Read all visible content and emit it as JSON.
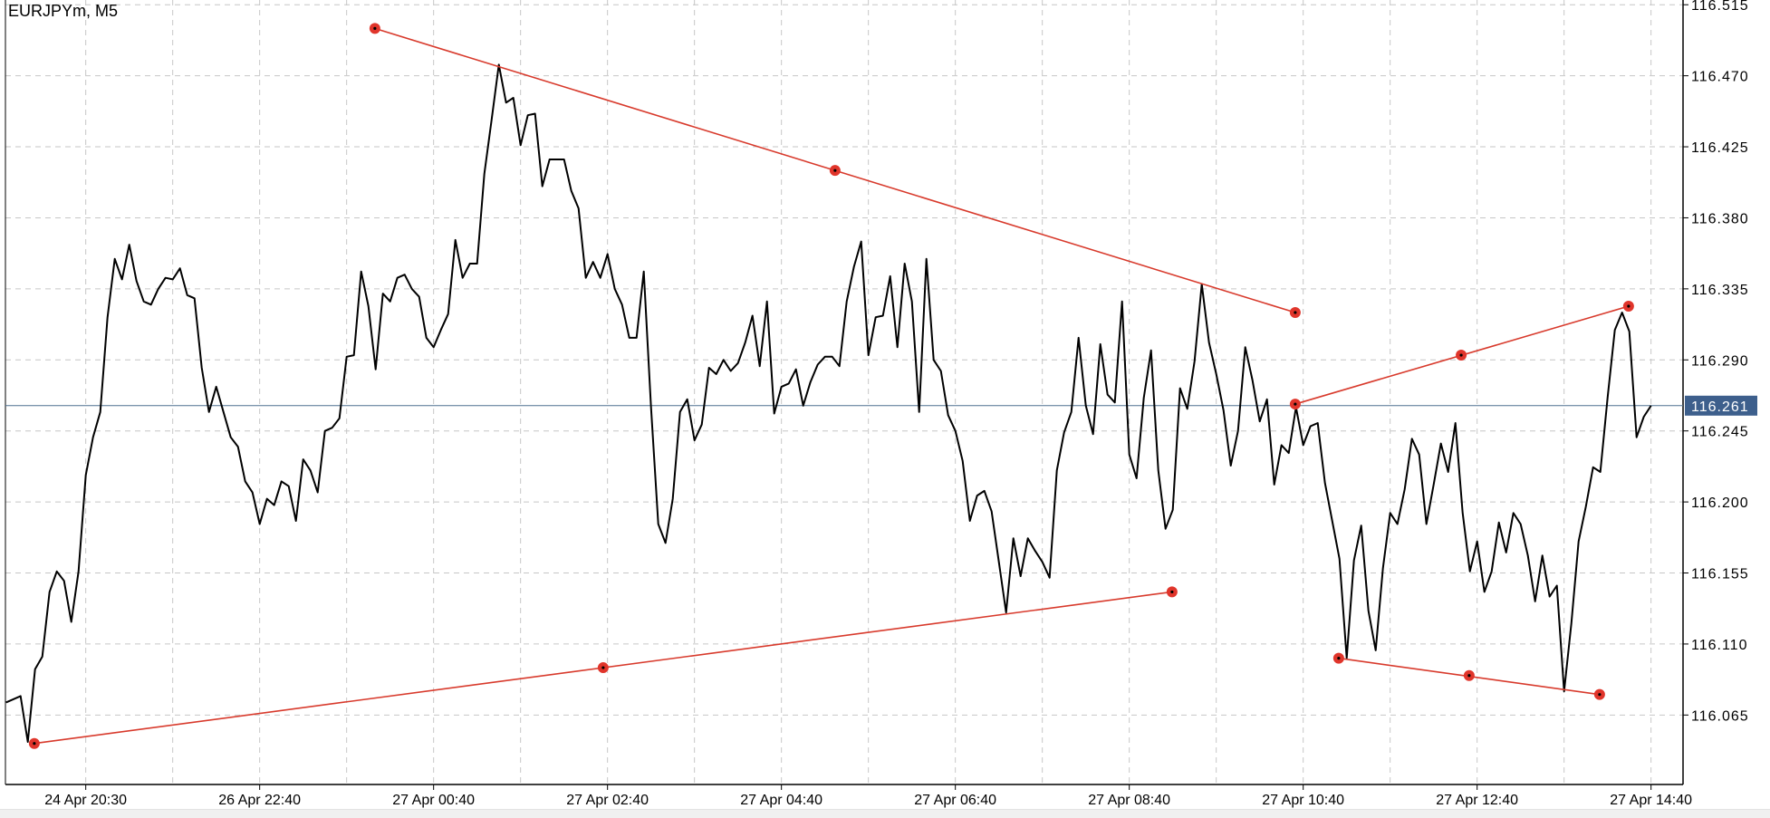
{
  "chart_title": "EURJPYm, M5",
  "colors": {
    "price_line": "#000000",
    "trendline": "#d83a2c",
    "anchor": "#e0352b",
    "grid": "#c6c6c6",
    "current_price_line": "#4f7090",
    "current_price_badge": "#3d5f8c"
  },
  "chart_data": {
    "type": "line",
    "symbol": "EURJPYm",
    "timeframe": "M5",
    "grid": true,
    "ylim": [
      116.021,
      116.518
    ],
    "y_ticks": [
      "116.515",
      "116.470",
      "116.425",
      "116.380",
      "116.335",
      "116.290",
      "116.245",
      "116.200",
      "116.155",
      "116.110",
      "116.065"
    ],
    "x_ticks": [
      {
        "label": "24 Apr 20:30",
        "bar": 11
      },
      {
        "label": "26 Apr 22:40",
        "bar": 35
      },
      {
        "label": "27 Apr 00:40",
        "bar": 59
      },
      {
        "label": "27 Apr 02:40",
        "bar": 83
      },
      {
        "label": "27 Apr 04:40",
        "bar": 107
      },
      {
        "label": "27 Apr 06:40",
        "bar": 131
      },
      {
        "label": "27 Apr 08:40",
        "bar": 155
      },
      {
        "label": "27 Apr 10:40",
        "bar": 179
      },
      {
        "label": "27 Apr 12:40",
        "bar": 203
      },
      {
        "label": "27 Apr 14:40",
        "bar": 227
      }
    ],
    "current_price": "116.261",
    "close": [
      116.073,
      116.075,
      116.077,
      116.048,
      116.094,
      116.102,
      116.143,
      116.156,
      116.15,
      116.124,
      116.156,
      116.217,
      116.241,
      116.257,
      116.317,
      116.354,
      116.341,
      116.363,
      116.34,
      116.327,
      116.325,
      116.335,
      116.342,
      116.341,
      116.348,
      116.331,
      116.329,
      116.285,
      116.257,
      116.273,
      116.257,
      116.241,
      116.235,
      116.213,
      116.206,
      116.186,
      116.202,
      116.198,
      116.213,
      116.21,
      116.188,
      116.227,
      116.22,
      116.206,
      116.245,
      116.247,
      116.253,
      116.292,
      116.293,
      116.346,
      116.324,
      116.284,
      116.332,
      116.327,
      116.342,
      116.344,
      116.335,
      116.33,
      116.304,
      116.298,
      116.309,
      116.319,
      116.366,
      116.342,
      116.351,
      116.351,
      116.408,
      116.442,
      116.477,
      116.453,
      116.456,
      116.426,
      116.445,
      116.446,
      116.4,
      116.417,
      116.417,
      116.417,
      116.397,
      116.386,
      116.342,
      116.352,
      116.342,
      116.357,
      116.335,
      116.325,
      116.304,
      116.304,
      116.346,
      116.26,
      116.186,
      116.174,
      116.202,
      116.257,
      116.265,
      116.239,
      116.249,
      116.285,
      116.281,
      116.29,
      116.283,
      116.288,
      116.301,
      116.318,
      116.286,
      116.327,
      116.256,
      116.273,
      116.275,
      116.284,
      116.261,
      116.276,
      116.287,
      116.292,
      116.292,
      116.286,
      116.327,
      116.349,
      116.365,
      116.293,
      116.317,
      116.318,
      116.343,
      116.298,
      116.351,
      116.327,
      116.257,
      116.354,
      116.29,
      116.283,
      116.255,
      116.245,
      116.226,
      116.188,
      116.204,
      116.207,
      116.194,
      116.162,
      116.13,
      116.177,
      116.153,
      116.177,
      116.169,
      116.162,
      116.152,
      116.22,
      116.244,
      116.257,
      116.304,
      116.261,
      116.243,
      116.3,
      116.268,
      116.263,
      116.327,
      116.23,
      116.215,
      116.266,
      116.296,
      116.22,
      116.183,
      116.195,
      116.272,
      116.259,
      116.289,
      116.338,
      116.301,
      116.281,
      116.258,
      116.223,
      116.245,
      116.298,
      116.277,
      116.251,
      116.265,
      116.211,
      116.236,
      116.231,
      116.26,
      116.236,
      116.248,
      116.25,
      116.212,
      116.188,
      116.164,
      116.101,
      116.163,
      116.185,
      116.131,
      116.106,
      116.158,
      116.193,
      116.186,
      116.208,
      116.24,
      116.23,
      116.186,
      116.211,
      116.237,
      116.219,
      116.25,
      116.193,
      116.156,
      116.175,
      116.143,
      116.156,
      116.187,
      116.168,
      116.193,
      116.186,
      116.166,
      116.137,
      116.166,
      116.14,
      116.147,
      116.08,
      116.123,
      116.175,
      116.197,
      116.222,
      116.219,
      116.266,
      116.309,
      116.32,
      116.308,
      116.241,
      116.254,
      116.261
    ],
    "trendlines": [
      {
        "points": [
          {
            "bar": 50.9,
            "price": 116.5
          },
          {
            "bar": 114.4,
            "price": 116.41
          },
          {
            "bar": 177.9,
            "price": 116.32
          }
        ]
      },
      {
        "points": [
          {
            "bar": 3.9,
            "price": 116.047
          },
          {
            "bar": 82.4,
            "price": 116.095
          },
          {
            "bar": 160.9,
            "price": 116.143
          }
        ]
      },
      {
        "points": [
          {
            "bar": 177.9,
            "price": 116.262
          },
          {
            "bar": 200.8,
            "price": 116.293
          },
          {
            "bar": 223.9,
            "price": 116.324
          }
        ]
      },
      {
        "points": [
          {
            "bar": 183.9,
            "price": 116.101
          },
          {
            "bar": 201.9,
            "price": 116.09
          },
          {
            "bar": 219.9,
            "price": 116.078
          }
        ]
      }
    ]
  }
}
